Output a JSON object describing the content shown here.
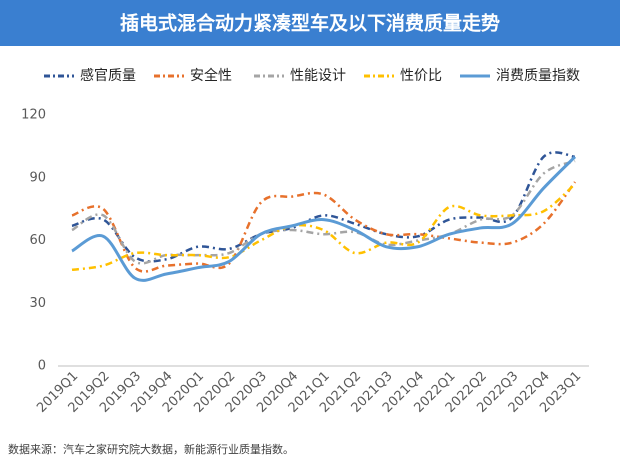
{
  "chart_data": {
    "type": "line",
    "title": "插电式混合动力紧凑型车及以下消费质量走势",
    "source": "数据来源：汽车之家研究院大数据，新能源行业质量指数。",
    "categories": [
      "2019Q1",
      "2019Q2",
      "2019Q3",
      "2019Q4",
      "2020Q1",
      "2020Q2",
      "2020Q3",
      "2020Q4",
      "2021Q1",
      "2021Q2",
      "2021Q3",
      "2021Q4",
      "2022Q1",
      "2022Q2",
      "2022Q3",
      "2022Q4",
      "2023Q1"
    ],
    "series": [
      {
        "name": "感官质量",
        "color": "#2f5597",
        "line_style": "dash-dot",
        "values": [
          67,
          70,
          52,
          51,
          57,
          56,
          63,
          66,
          72,
          68,
          63,
          62,
          70,
          71,
          71,
          100,
          100
        ]
      },
      {
        "name": "安全性",
        "color": "#e7712c",
        "line_style": "dash-dot",
        "values": [
          72,
          75,
          47,
          48,
          49,
          49,
          78,
          81,
          82,
          70,
          63,
          63,
          61,
          59,
          59,
          68,
          88
        ]
      },
      {
        "name": "性能设计",
        "color": "#a5a5a5",
        "line_style": "dash-dot",
        "values": [
          65,
          72,
          50,
          53,
          53,
          54,
          63,
          65,
          63,
          64,
          58,
          60,
          63,
          70,
          72,
          92,
          98
        ]
      },
      {
        "name": "性价比",
        "color": "#ffc000",
        "line_style": "dash-dot",
        "values": [
          46,
          48,
          54,
          53,
          53,
          52,
          60,
          67,
          65,
          54,
          59,
          59,
          76,
          72,
          72,
          74,
          87
        ]
      },
      {
        "name": "消费质量指数",
        "color": "#5b9bd5",
        "line_style": "solid",
        "values": [
          55,
          62,
          42,
          44,
          47,
          50,
          63,
          67,
          70,
          65,
          57,
          57,
          63,
          66,
          68,
          85,
          100
        ]
      }
    ],
    "ylim": [
      0,
      120
    ],
    "yticks": [
      0,
      30,
      60,
      90,
      120
    ],
    "grid": false,
    "legend": "top"
  }
}
